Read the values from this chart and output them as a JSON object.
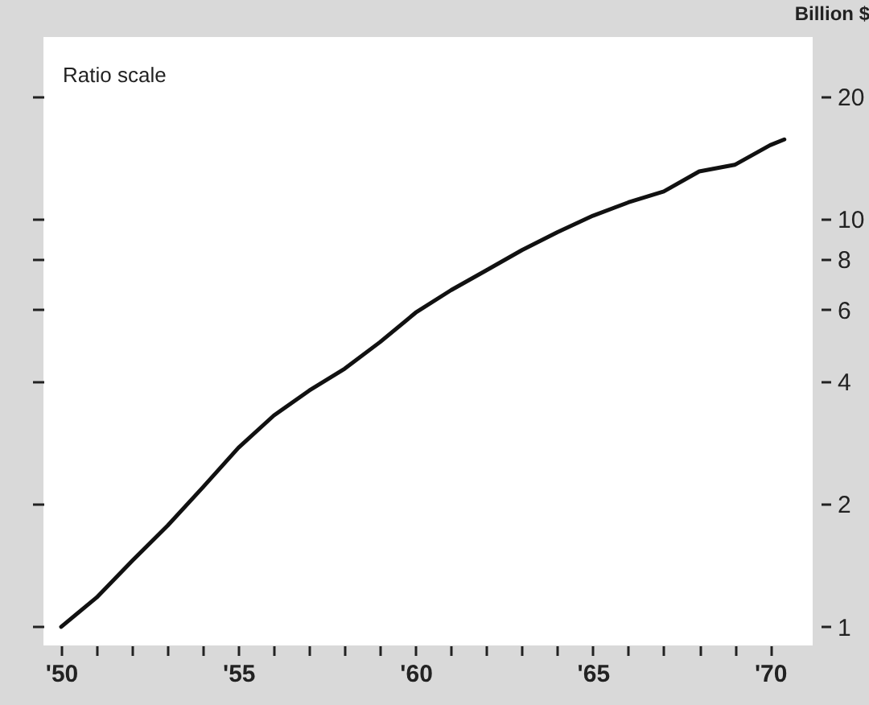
{
  "chart_data": {
    "type": "line",
    "ylabel": "Billion $",
    "annotations": [
      "Ratio scale"
    ],
    "log": "y",
    "x": [
      1950,
      1951,
      1952,
      1953,
      1954,
      1955,
      1956,
      1957,
      1958,
      1959,
      1960,
      1961,
      1962,
      1963,
      1964,
      1965,
      1966,
      1967,
      1968,
      1969,
      1970,
      1970.4
    ],
    "series": [
      {
        "color": "#111111",
        "values": [
          1.0,
          1.18,
          1.45,
          1.77,
          2.2,
          2.75,
          3.3,
          3.8,
          4.3,
          5.0,
          5.9,
          6.7,
          7.5,
          8.4,
          9.3,
          10.2,
          11.0,
          11.7,
          13.1,
          13.6,
          15.2,
          15.7
        ]
      }
    ],
    "xlim": [
      1949.5,
      1971.2
    ],
    "xticks": [
      {
        "value": 1950,
        "label": "'50"
      },
      {
        "value": 1951,
        "label": null
      },
      {
        "value": 1952,
        "label": null
      },
      {
        "value": 1953,
        "label": null
      },
      {
        "value": 1954,
        "label": null
      },
      {
        "value": 1955,
        "label": "'55"
      },
      {
        "value": 1956,
        "label": null
      },
      {
        "value": 1957,
        "label": null
      },
      {
        "value": 1958,
        "label": null
      },
      {
        "value": 1959,
        "label": null
      },
      {
        "value": 1960,
        "label": "'60"
      },
      {
        "value": 1961,
        "label": null
      },
      {
        "value": 1962,
        "label": null
      },
      {
        "value": 1963,
        "label": null
      },
      {
        "value": 1964,
        "label": null
      },
      {
        "value": 1965,
        "label": "'65"
      },
      {
        "value": 1966,
        "label": null
      },
      {
        "value": 1967,
        "label": null
      },
      {
        "value": 1968,
        "label": null
      },
      {
        "value": 1969,
        "label": null
      },
      {
        "value": 1970,
        "label": "'70"
      }
    ],
    "ylim": [
      0.9,
      28
    ],
    "yticks": [
      1,
      2,
      4,
      6,
      8,
      10,
      20
    ]
  }
}
